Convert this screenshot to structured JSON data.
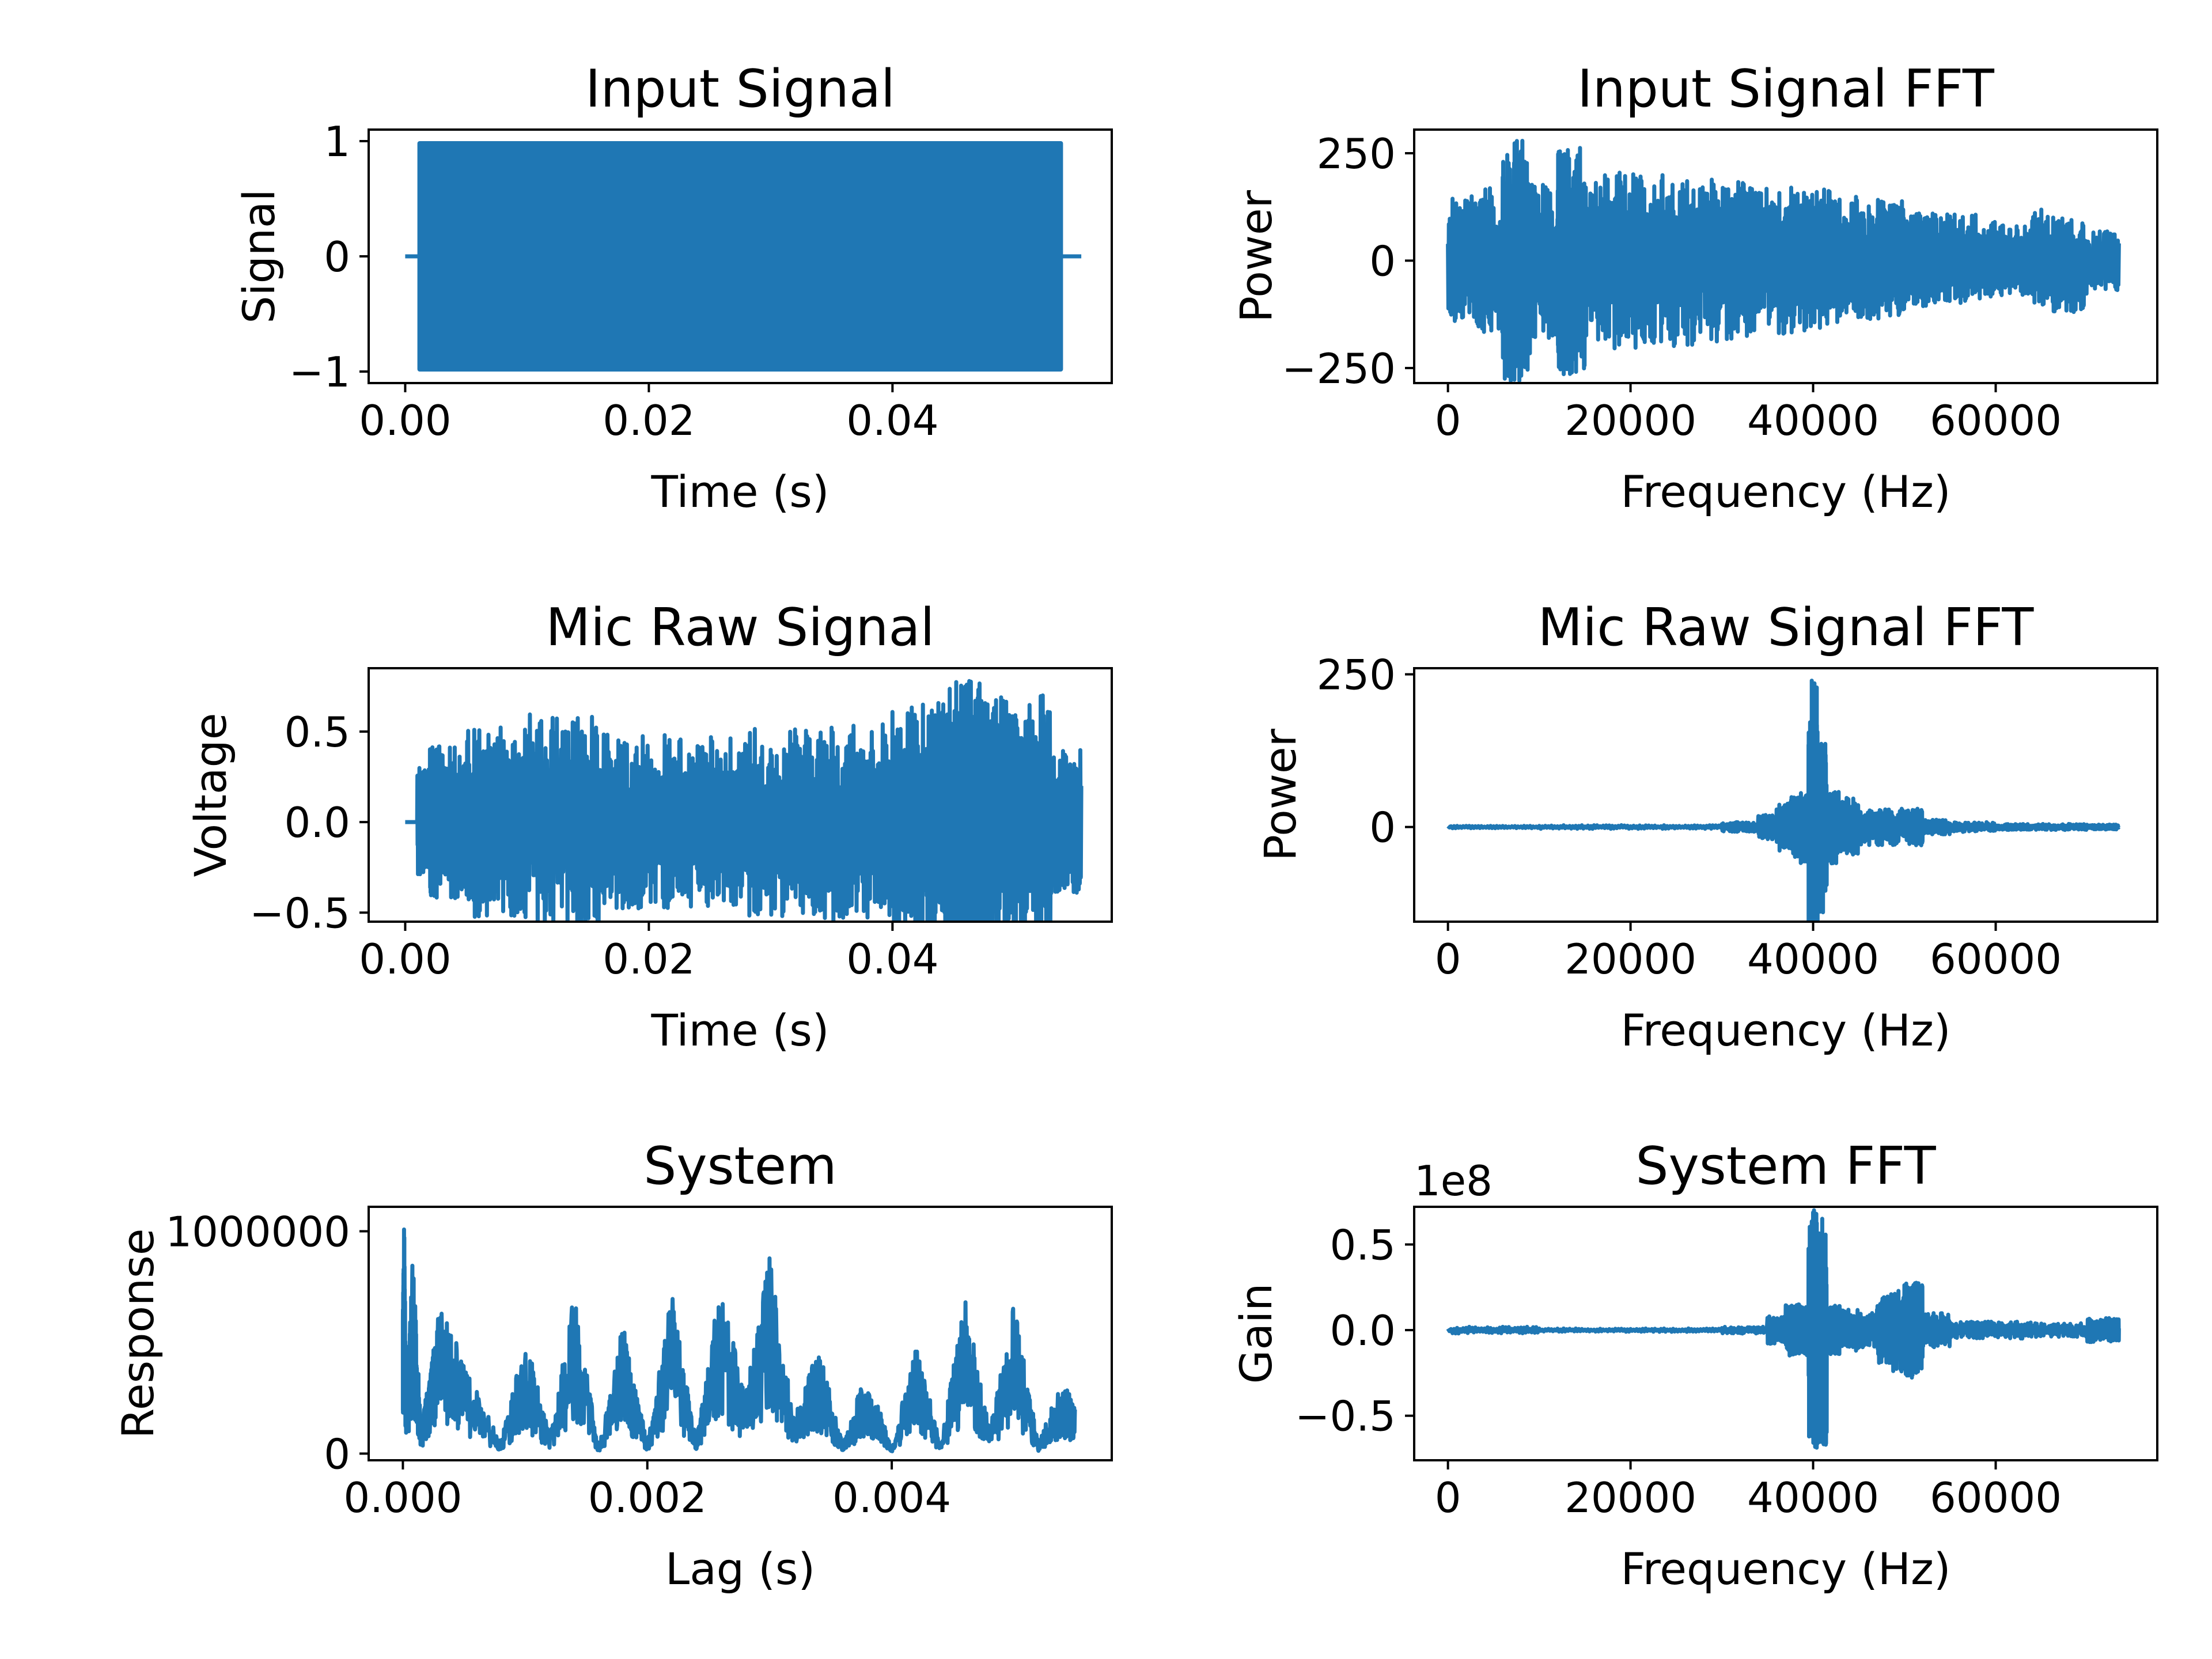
{
  "chart_data": [
    {
      "type": "line",
      "title": "Input Signal",
      "xlabel": "Time (s)",
      "ylabel": "Signal",
      "xlim": [
        -0.003,
        0.058
      ],
      "ylim": [
        -1.1,
        1.1
      ],
      "xticks": [
        0.0,
        0.02,
        0.04
      ],
      "xtick_labels": [
        "0.00",
        "0.02",
        "0.04"
      ],
      "yticks": [
        -1,
        0,
        1
      ],
      "ytick_labels": [
        "−1",
        "0",
        "1"
      ],
      "x": [
        0.0,
        0.0009,
        0.001,
        0.054,
        0.0541,
        0.0555
      ],
      "y": [
        0,
        0,
        0,
        0,
        0,
        0
      ],
      "band": {
        "x_start": 0.001,
        "x_end": 0.054,
        "y_low": -1.0,
        "y_high": 1.0
      },
      "grid": false,
      "color": "#1f77b4"
    },
    {
      "type": "line",
      "title": "Input Signal FFT",
      "xlabel": "Frequency (Hz)",
      "ylabel": "Power",
      "xlim": [
        -3700,
        77700
      ],
      "ylim": [
        -285,
        305
      ],
      "xticks": [
        0,
        20000,
        40000,
        60000
      ],
      "xtick_labels": [
        "0",
        "20000",
        "40000",
        "60000"
      ],
      "yticks": [
        -250,
        0,
        250
      ],
      "ytick_labels": [
        "−250",
        "0",
        "250"
      ],
      "x": [
        0,
        3000,
        6000,
        7500,
        9000,
        12000,
        13000,
        15000,
        18000,
        21000,
        24000,
        27000,
        30000,
        33000,
        36000,
        39000,
        42000,
        45000,
        48000,
        50000,
        52000,
        55000,
        58000,
        61000,
        64000,
        67000,
        70000,
        73500
      ],
      "y": [
        -40,
        150,
        170,
        280,
        -150,
        180,
        -265,
        200,
        210,
        -190,
        200,
        -170,
        190,
        160,
        -170,
        170,
        150,
        -150,
        140,
        110,
        100,
        -110,
        90,
        80,
        -80,
        120,
        70,
        40
      ],
      "grid": false,
      "color": "#1f77b4"
    },
    {
      "type": "line",
      "title": "Mic Raw Signal",
      "xlabel": "Time (s)",
      "ylabel": "Voltage",
      "xlim": [
        -0.003,
        0.058
      ],
      "ylim": [
        -0.55,
        0.85
      ],
      "xticks": [
        0.0,
        0.02,
        0.04
      ],
      "xtick_labels": [
        "0.00",
        "0.02",
        "0.04"
      ],
      "yticks": [
        -0.5,
        0.0,
        0.5
      ],
      "ytick_labels": [
        "−0.5",
        "0.0",
        "0.5"
      ],
      "x": [
        0.0,
        0.001,
        0.002,
        0.003,
        0.005,
        0.0075,
        0.01,
        0.0135,
        0.016,
        0.019,
        0.022,
        0.025,
        0.028,
        0.031,
        0.034,
        0.037,
        0.04,
        0.0425,
        0.0445,
        0.0465,
        0.048,
        0.0505,
        0.053,
        0.0555
      ],
      "y": [
        0.0,
        0.0,
        0.3,
        0.42,
        -0.35,
        0.53,
        -0.38,
        0.6,
        -0.42,
        0.5,
        -0.4,
        0.47,
        -0.4,
        0.52,
        -0.45,
        0.55,
        -0.42,
        0.66,
        -0.5,
        0.8,
        -0.42,
        0.7,
        -0.4,
        0.2
      ],
      "grid": false,
      "color": "#1f77b4"
    },
    {
      "type": "line",
      "title": "Mic Raw Signal FFT",
      "xlabel": "Frequency (Hz)",
      "ylabel": "Power",
      "xlim": [
        -3700,
        77700
      ],
      "ylim": [
        -155,
        260
      ],
      "xticks": [
        0,
        20000,
        40000,
        60000
      ],
      "xtick_labels": [
        "0",
        "20000",
        "40000",
        "60000"
      ],
      "yticks": [
        0,
        250
      ],
      "ytick_labels": [
        "0",
        "250"
      ],
      "x": [
        0,
        10000,
        20000,
        30000,
        34000,
        36000,
        37500,
        38500,
        39500,
        40000,
        40500,
        41500,
        43000,
        45000,
        48000,
        51000,
        52000,
        55000,
        60000,
        65000,
        70000,
        73500
      ],
      "y": [
        0,
        2,
        -3,
        3,
        8,
        20,
        -40,
        50,
        -60,
        240,
        -140,
        60,
        -50,
        30,
        -25,
        30,
        12,
        -8,
        5,
        -5,
        4,
        0
      ],
      "grid": false,
      "color": "#1f77b4"
    },
    {
      "type": "line",
      "title": "System",
      "xlabel": "Lag (s)",
      "ylabel": "Response",
      "xlim": [
        -0.00028,
        0.0058
      ],
      "ylim": [
        -30000,
        1110000
      ],
      "xticks": [
        0.0,
        0.002,
        0.004
      ],
      "xtick_labels": [
        "0.000",
        "0.002",
        "0.004"
      ],
      "yticks": [
        0,
        1000000
      ],
      "ytick_labels": [
        "0",
        "1000000"
      ],
      "x": [
        0.0,
        1e-05,
        3e-05,
        8e-05,
        0.00015,
        0.0003,
        0.0005,
        0.0008,
        0.001,
        0.0012,
        0.0014,
        0.0016,
        0.0018,
        0.002,
        0.0022,
        0.0024,
        0.0026,
        0.0028,
        0.003,
        0.0032,
        0.0034,
        0.0036,
        0.0038,
        0.004,
        0.0042,
        0.0044,
        0.0046,
        0.0048,
        0.005,
        0.0052,
        0.0054,
        0.0055
      ],
      "y": [
        650000,
        1060000,
        200000,
        940000,
        100000,
        730000,
        420000,
        50000,
        540000,
        80000,
        720000,
        30000,
        580000,
        50000,
        720000,
        60000,
        780000,
        250000,
        880000,
        150000,
        500000,
        40000,
        400000,
        20000,
        520000,
        30000,
        720000,
        100000,
        680000,
        50000,
        340000,
        200000
      ],
      "grid": false,
      "color": "#1f77b4"
    },
    {
      "type": "line",
      "title": "System FFT",
      "xlabel": "Frequency (Hz)",
      "ylabel": "Gain",
      "offset_text": "1e8",
      "xlim": [
        -3700,
        77700
      ],
      "ylim": [
        -0.76,
        0.72
      ],
      "xticks": [
        0,
        20000,
        40000,
        60000
      ],
      "xtick_labels": [
        "0",
        "20000",
        "40000",
        "60000"
      ],
      "yticks": [
        -0.5,
        0.0,
        0.5
      ],
      "ytick_labels": [
        "−0.5",
        "0.0",
        "0.5"
      ],
      "x": [
        0,
        10000,
        20000,
        30000,
        35000,
        37000,
        38500,
        39500,
        40000,
        40500,
        41500,
        43000,
        45000,
        47000,
        48500,
        50000,
        51000,
        52000,
        55000,
        60000,
        65000,
        70000,
        72500,
        73500
      ],
      "y": [
        -0.02,
        0.01,
        -0.01,
        0.0,
        0.02,
        0.08,
        -0.15,
        0.12,
        0.64,
        -0.7,
        0.15,
        -0.12,
        0.1,
        -0.1,
        0.2,
        -0.25,
        0.28,
        -0.1,
        0.05,
        -0.05,
        0.03,
        0.04,
        0.07,
        0.01
      ],
      "grid": false,
      "color": "#1f77b4"
    }
  ]
}
